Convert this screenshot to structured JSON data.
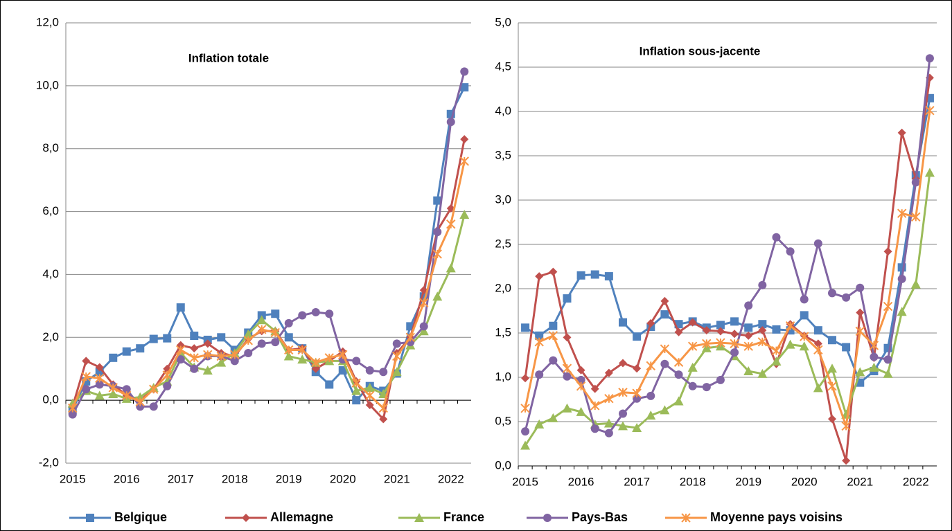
{
  "chart_data": [
    {
      "type": "line",
      "title": "Inflation totale",
      "categories": [
        "2015",
        null,
        null,
        null,
        "2016",
        null,
        null,
        null,
        "2017",
        null,
        null,
        null,
        "2018",
        null,
        null,
        null,
        "2019",
        null,
        null,
        null,
        "2020",
        null,
        null,
        null,
        "2021",
        null,
        null,
        null,
        "2022",
        null
      ],
      "ylim": [
        -2,
        12
      ],
      "yticks": [
        {
          "value": -2,
          "label": "-2,0"
        },
        {
          "value": 0,
          "label": "0,0"
        },
        {
          "value": 2,
          "label": "2,0"
        },
        {
          "value": 4,
          "label": "4,0"
        },
        {
          "value": 6,
          "label": "6,0"
        },
        {
          "value": 8,
          "label": "8,0"
        },
        {
          "value": 10,
          "label": "10,0"
        },
        {
          "value": 12,
          "label": "12,0"
        }
      ],
      "grid": true,
      "series": [
        {
          "name": "Belgique",
          "color": "#4f81bd",
          "marker": "square",
          "values": [
            -0.3,
            0.6,
            0.9,
            1.35,
            1.55,
            1.65,
            1.95,
            1.97,
            2.95,
            2.05,
            1.92,
            2.0,
            1.6,
            2.15,
            2.7,
            2.75,
            2.0,
            1.65,
            0.9,
            0.5,
            0.95,
            0.0,
            0.45,
            0.3,
            0.85,
            2.35,
            3.3,
            6.35,
            9.1,
            9.95
          ]
        },
        {
          "name": "Allemagne",
          "color": "#c0504d",
          "marker": "diamond",
          "values": [
            -0.2,
            1.25,
            1.05,
            0.5,
            0.15,
            0.0,
            0.35,
            1.0,
            1.75,
            1.65,
            1.8,
            1.5,
            1.4,
            1.95,
            2.2,
            2.2,
            1.6,
            1.65,
            1.0,
            1.25,
            1.55,
            0.6,
            -0.15,
            -0.6,
            1.5,
            2.0,
            3.5,
            5.4,
            6.1,
            8.3
          ]
        },
        {
          "name": "France",
          "color": "#9bbb59",
          "marker": "triangle",
          "values": [
            -0.1,
            0.3,
            0.15,
            0.2,
            0.05,
            0.1,
            0.4,
            0.6,
            1.5,
            1.05,
            0.95,
            1.2,
            1.5,
            2.1,
            2.55,
            2.2,
            1.4,
            1.3,
            1.2,
            1.25,
            1.25,
            0.3,
            0.4,
            0.2,
            0.9,
            1.75,
            2.2,
            3.3,
            4.2,
            5.9
          ]
        },
        {
          "name": "Pays-Bas",
          "color": "#8064a2",
          "marker": "circle",
          "values": [
            -0.45,
            0.35,
            0.5,
            0.45,
            0.35,
            -0.2,
            -0.2,
            0.45,
            1.3,
            1.0,
            1.4,
            1.4,
            1.25,
            1.5,
            1.8,
            1.85,
            2.45,
            2.7,
            2.8,
            2.75,
            1.3,
            1.25,
            0.95,
            0.9,
            1.8,
            1.85,
            2.35,
            5.35,
            8.85,
            10.45
          ]
        },
        {
          "name": "Moyenne pays voisins",
          "color": "#f79646",
          "marker": "star",
          "values": [
            -0.25,
            0.75,
            0.7,
            0.4,
            0.15,
            -0.05,
            0.35,
            0.8,
            1.6,
            1.35,
            1.45,
            1.4,
            1.45,
            1.9,
            2.25,
            2.15,
            1.6,
            1.6,
            1.2,
            1.35,
            1.45,
            0.55,
            0.15,
            -0.25,
            1.4,
            2.0,
            3.1,
            4.65,
            5.6,
            7.6
          ]
        }
      ]
    },
    {
      "type": "line",
      "title": "Inflation sous-jacente",
      "categories": [
        "2015",
        null,
        null,
        null,
        "2016",
        null,
        null,
        null,
        "2017",
        null,
        null,
        null,
        "2018",
        null,
        null,
        null,
        "2019",
        null,
        null,
        null,
        "2020",
        null,
        null,
        null,
        "2021",
        null,
        null,
        null,
        "2022",
        null
      ],
      "ylim": [
        0,
        5
      ],
      "yticks": [
        {
          "value": 0,
          "label": "0,0"
        },
        {
          "value": 0.5,
          "label": "0,5"
        },
        {
          "value": 1,
          "label": "1,0"
        },
        {
          "value": 1.5,
          "label": "1,5"
        },
        {
          "value": 2,
          "label": "2,0"
        },
        {
          "value": 2.5,
          "label": "2,5"
        },
        {
          "value": 3,
          "label": "3,0"
        },
        {
          "value": 3.5,
          "label": "3,5"
        },
        {
          "value": 4,
          "label": "4,0"
        },
        {
          "value": 4.5,
          "label": "4,5"
        },
        {
          "value": 5,
          "label": "5,0"
        }
      ],
      "grid": true,
      "series": [
        {
          "color": "#4f81bd",
          "marker": "square",
          "values": [
            1.56,
            1.47,
            1.58,
            1.89,
            2.15,
            2.16,
            2.14,
            1.62,
            1.46,
            1.57,
            1.71,
            1.6,
            1.63,
            1.56,
            1.59,
            1.63,
            1.56,
            1.6,
            1.54,
            1.53,
            1.7,
            1.53,
            1.42,
            1.34,
            0.94,
            1.07,
            1.33,
            2.24,
            3.28,
            4.15
          ]
        },
        {
          "color": "#c0504d",
          "marker": "diamond",
          "values": [
            0.99,
            2.14,
            2.19,
            1.45,
            1.08,
            0.87,
            1.05,
            1.16,
            1.1,
            1.61,
            1.86,
            1.51,
            1.62,
            1.53,
            1.52,
            1.49,
            1.47,
            1.53,
            1.15,
            1.6,
            1.47,
            1.38,
            0.53,
            0.06,
            1.73,
            1.22,
            2.42,
            3.76,
            3.24,
            4.38
          ]
        },
        {
          "color": "#9bbb59",
          "marker": "triangle",
          "values": [
            0.23,
            0.47,
            0.54,
            0.65,
            0.61,
            0.47,
            0.48,
            0.45,
            0.43,
            0.57,
            0.63,
            0.73,
            1.11,
            1.33,
            1.35,
            1.24,
            1.07,
            1.04,
            1.18,
            1.37,
            1.35,
            0.88,
            1.1,
            0.58,
            1.06,
            1.11,
            1.04,
            1.74,
            2.05,
            3.31
          ]
        },
        {
          "color": "#8064a2",
          "marker": "circle",
          "values": [
            0.39,
            1.03,
            1.19,
            1.01,
            0.97,
            0.42,
            0.37,
            0.59,
            0.76,
            0.79,
            1.15,
            1.03,
            0.9,
            0.89,
            0.97,
            1.28,
            1.81,
            2.04,
            2.58,
            2.42,
            1.88,
            2.51,
            1.95,
            1.9,
            2.01,
            1.23,
            1.2,
            2.11,
            3.2,
            4.6
          ]
        },
        {
          "color": "#f79646",
          "marker": "star",
          "values": [
            0.65,
            1.4,
            1.47,
            1.1,
            0.9,
            0.68,
            0.76,
            0.83,
            0.82,
            1.13,
            1.32,
            1.17,
            1.35,
            1.38,
            1.39,
            1.38,
            1.35,
            1.4,
            1.3,
            1.58,
            1.46,
            1.31,
            0.9,
            0.45,
            1.52,
            1.36,
            1.8,
            2.85,
            2.81,
            4.01
          ]
        }
      ]
    }
  ]
}
